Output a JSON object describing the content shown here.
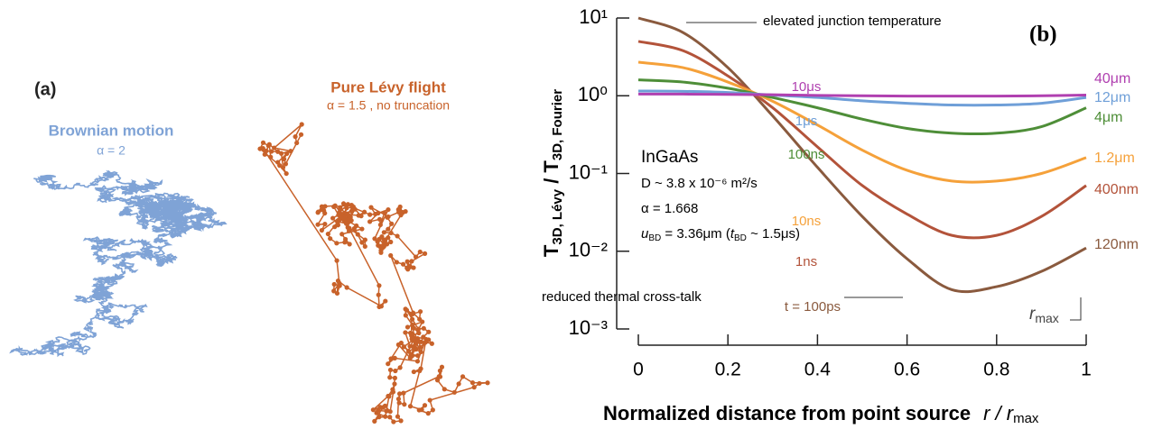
{
  "panel_a": {
    "label": "(a)",
    "brownian_title": "Brownian motion",
    "brownian_alpha": "α = 2",
    "levy_title": "Pure Lévy flight",
    "levy_subtitle": "α = 1.5 , no truncation"
  },
  "chart_data": {
    "type": "line",
    "panel_label": "(b)",
    "scale": "log",
    "ylabel": {
      "t1": "T",
      "sub1": "3D, Lévy",
      "t2": " / T",
      "sub2": "3D, Fourier"
    },
    "xlabel": {
      "text": "Normalized distance from point source",
      "r": "r / r",
      "sub": "max"
    },
    "annotations": {
      "top": "elevated junction temperature",
      "bottom": "reduced thermal cross-talk",
      "material": "InGaAs",
      "diffusion": "D ~ 3.8 x 10⁻⁶ m²/s",
      "alpha": "α = 1.668",
      "u": "u",
      "u_sub": "BD",
      "u_rest": " = 3.36μm (",
      "t": "t",
      "t_sub": "BD",
      "t_rest": " ~ 1.5μs)",
      "rmax": "r",
      "rmax_sub": "max"
    },
    "x": [
      0,
      0.1,
      0.2,
      0.3,
      0.4,
      0.5,
      0.6,
      0.7,
      0.8,
      0.9,
      1
    ],
    "xlim": [
      0,
      1
    ],
    "xticks": [
      0,
      0.2,
      0.4,
      0.6,
      0.8,
      1
    ],
    "ylim": [
      0.001,
      10
    ],
    "yticks": [
      {
        "value": 0.001,
        "label": "10⁻³"
      },
      {
        "value": 0.01,
        "label": "10⁻²"
      },
      {
        "value": 0.1,
        "label": "10⁻¹"
      },
      {
        "value": 1,
        "label": "10⁰"
      },
      {
        "value": 10,
        "label": "10¹"
      }
    ],
    "series": [
      {
        "name": "t = 100ps",
        "end_label": "120nm",
        "color": "#8a5a3e",
        "values": [
          10,
          6.5,
          2.3,
          0.55,
          0.12,
          0.028,
          0.008,
          0.0032,
          0.0035,
          0.0055,
          0.011
        ]
      },
      {
        "name": "1ns",
        "end_label": "400nm",
        "color": "#b3533a",
        "values": [
          5,
          3.8,
          1.8,
          0.7,
          0.22,
          0.07,
          0.03,
          0.016,
          0.016,
          0.028,
          0.07
        ]
      },
      {
        "name": "10ns",
        "end_label": "1.2μm",
        "color": "#f5a13a",
        "values": [
          2.7,
          2.3,
          1.5,
          0.85,
          0.42,
          0.2,
          0.11,
          0.08,
          0.08,
          0.1,
          0.16
        ]
      },
      {
        "name": "100ns",
        "end_label": "4μm",
        "color": "#4e8e38",
        "values": [
          1.6,
          1.5,
          1.25,
          0.95,
          0.7,
          0.5,
          0.38,
          0.33,
          0.33,
          0.4,
          0.7
        ]
      },
      {
        "name": "1μs",
        "end_label": "12μm",
        "color": "#6f9fd8",
        "values": [
          1.15,
          1.14,
          1.1,
          1.02,
          0.95,
          0.86,
          0.8,
          0.76,
          0.76,
          0.8,
          0.95
        ]
      },
      {
        "name": "10μs",
        "end_label": "40μm",
        "color": "#b040b0",
        "values": [
          1.05,
          1.05,
          1.04,
          1.03,
          1.01,
          1.0,
          0.99,
          0.99,
          0.99,
          1.0,
          1.02
        ]
      }
    ]
  }
}
